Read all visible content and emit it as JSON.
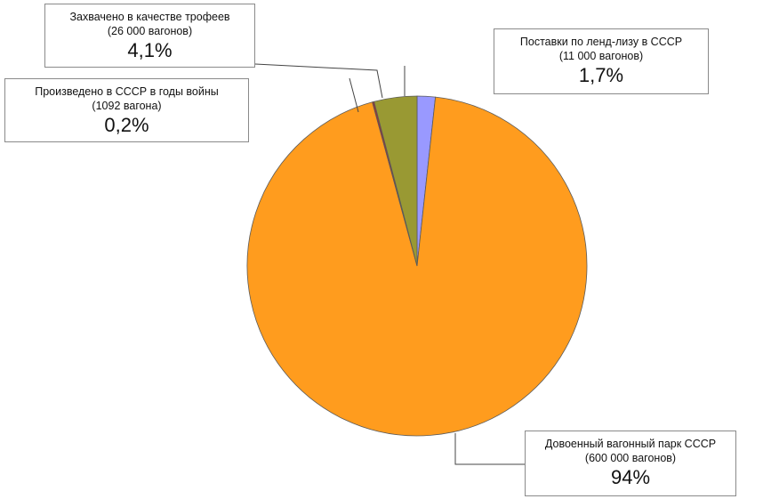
{
  "chart_data": {
    "type": "pie",
    "title": "",
    "slices": [
      {
        "label": "Поставки по ленд-лизу в СССР",
        "units": "(11 000 вагонов)",
        "pct_label": "1,7%",
        "value": 11000,
        "color": "#9999ff"
      },
      {
        "label": "Довоенный вагонный парк СССР",
        "units": "(600 000 вагонов)",
        "pct_label": "94%",
        "value": 600000,
        "color": "#ff9c1e"
      },
      {
        "label": "Произведено в СССР в годы войны",
        "units": "(1092 вагона)",
        "pct_label": "0,2%",
        "value": 1092,
        "color": "#993333"
      },
      {
        "label": "Захвачено в качестве трофеев",
        "units": "(26 000 вагонов)",
        "pct_label": "4,1%",
        "value": 26000,
        "color": "#999933"
      }
    ],
    "legend": "none"
  }
}
